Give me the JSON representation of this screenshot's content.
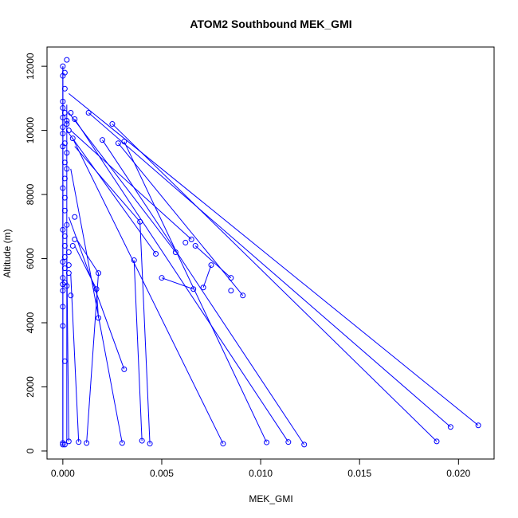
{
  "chart_data": {
    "type": "scatter",
    "title": "ATOM2 Southbound MEK_GMI",
    "xlabel": "MEK_GMI",
    "ylabel": "Altitude (m)",
    "xlim": [
      -0.0008,
      0.0218
    ],
    "ylim": [
      -250,
      12600
    ],
    "x_ticks": [
      0.0,
      0.005,
      0.01,
      0.015,
      0.02
    ],
    "x_tick_labels": [
      "0.000",
      "0.005",
      "0.010",
      "0.015",
      "0.020"
    ],
    "y_ticks": [
      0,
      2000,
      4000,
      6000,
      8000,
      10000,
      12000
    ],
    "y_tick_labels": [
      "0",
      "2000",
      "4000",
      "6000",
      "8000",
      "10000",
      "12000"
    ],
    "grid": false,
    "legend": "none",
    "color": "#0000ff",
    "series": [
      {
        "points": [
          [
            0.0002,
            12200
          ],
          [
            0.0,
            12000
          ],
          [
            0.0001,
            11800
          ],
          [
            0.0,
            11700
          ],
          [
            0.0001,
            11300
          ],
          [
            0.0,
            10900
          ],
          [
            0.0,
            10700
          ],
          [
            0.0001,
            10550
          ],
          [
            0.0004,
            10550
          ],
          [
            0.0,
            10400
          ],
          [
            0.0002,
            10300
          ],
          [
            0.0006,
            10350
          ],
          [
            0.0002,
            10200
          ],
          [
            0.0,
            10100
          ],
          [
            0.0003,
            10000
          ],
          [
            0.0,
            9900
          ],
          [
            0.0005,
            9750
          ],
          [
            0.0001,
            9600
          ],
          [
            0.0,
            9500
          ],
          [
            0.0002,
            9300
          ],
          [
            0.0001,
            9000
          ],
          [
            0.0002,
            8800
          ],
          [
            0.0001,
            8500
          ],
          [
            0.0,
            8200
          ],
          [
            0.0001,
            7900
          ],
          [
            0.0001,
            7500
          ],
          [
            0.0006,
            7300
          ],
          [
            0.0002,
            7050
          ],
          [
            0.0,
            6900
          ],
          [
            0.0001,
            6700
          ],
          [
            0.0006,
            6600
          ],
          [
            0.0001,
            6400
          ],
          [
            0.0005,
            6400
          ],
          [
            0.0003,
            6200
          ],
          [
            0.0001,
            6050
          ],
          [
            0.0,
            5900
          ],
          [
            0.0003,
            5800
          ],
          [
            0.0001,
            5700
          ],
          [
            0.0003,
            5550
          ],
          [
            0.0,
            5400
          ],
          [
            0.0001,
            5250
          ],
          [
            0.0,
            5200
          ],
          [
            0.0002,
            5150
          ],
          [
            0.0,
            5000
          ],
          [
            0.0004,
            4850
          ],
          [
            0.0,
            4500
          ],
          [
            0.0,
            3900
          ],
          [
            0.0001,
            2800
          ],
          [
            0.0,
            250
          ],
          [
            0.0,
            200
          ],
          [
            0.0001,
            200
          ],
          [
            0.0003,
            300
          ],
          [
            0.0008,
            280
          ],
          [
            0.0012,
            250
          ],
          [
            0.0013,
            10550
          ],
          [
            0.0025,
            10200
          ],
          [
            0.002,
            9700
          ],
          [
            0.0028,
            9600
          ],
          [
            0.0031,
            9650
          ],
          [
            0.0039,
            7150
          ],
          [
            0.0065,
            6600
          ],
          [
            0.0062,
            6500
          ],
          [
            0.0067,
            6400
          ],
          [
            0.0047,
            6150
          ],
          [
            0.0057,
            6200
          ],
          [
            0.0036,
            5950
          ],
          [
            0.0075,
            5800
          ],
          [
            0.0018,
            5550
          ],
          [
            0.005,
            5400
          ],
          [
            0.0085,
            5400
          ],
          [
            0.0071,
            5100
          ],
          [
            0.0066,
            5050
          ],
          [
            0.0017,
            5050
          ],
          [
            0.0085,
            5000
          ],
          [
            0.0091,
            4850
          ],
          [
            0.0018,
            4150
          ],
          [
            0.0031,
            2550
          ],
          [
            0.003,
            250
          ],
          [
            0.004,
            320
          ],
          [
            0.0044,
            230
          ],
          [
            0.0081,
            230
          ],
          [
            0.0103,
            270
          ],
          [
            0.0114,
            280
          ],
          [
            0.0122,
            200
          ],
          [
            0.0189,
            300
          ],
          [
            0.0196,
            750
          ],
          [
            0.021,
            800
          ]
        ],
        "segments": [
          [
            [
              0.0003,
              11150
            ],
            [
              0.021,
              800
            ]
          ],
          [
            [
              0.0013,
              10550
            ],
            [
              0.0196,
              750
            ]
          ],
          [
            [
              0.0025,
              10200
            ],
            [
              0.0189,
              300
            ]
          ],
          [
            [
              0.0006,
              10350
            ],
            [
              0.0114,
              280
            ]
          ],
          [
            [
              0.002,
              9700
            ],
            [
              0.0122,
              200
            ]
          ],
          [
            [
              0.0031,
              9650
            ],
            [
              0.0103,
              270
            ]
          ],
          [
            [
              0.0028,
              9600
            ],
            [
              0.0091,
              4850
            ]
          ],
          [
            [
              0.0005,
              9750
            ],
            [
              0.0081,
              230
            ]
          ],
          [
            [
              0.0004,
              10000
            ],
            [
              0.0065,
              6600
            ]
          ],
          [
            [
              0.0003,
              10550
            ],
            [
              0.0057,
              6200
            ]
          ],
          [
            [
              0.0002,
              10000
            ],
            [
              0.0047,
              6150
            ]
          ],
          [
            [
              0.0006,
              9500
            ],
            [
              0.0039,
              7150
            ]
          ],
          [
            [
              0.0039,
              7150
            ],
            [
              0.0044,
              230
            ]
          ],
          [
            [
              0.0036,
              5950
            ],
            [
              0.004,
              320
            ]
          ],
          [
            [
              0.0004,
              8800
            ],
            [
              0.003,
              250
            ]
          ],
          [
            [
              0.0003,
              7300
            ],
            [
              0.0031,
              2550
            ]
          ],
          [
            [
              0.0007,
              6600
            ],
            [
              0.0018,
              5550
            ]
          ],
          [
            [
              0.0018,
              5550
            ],
            [
              0.0012,
              250
            ]
          ],
          [
            [
              0.0006,
              6400
            ],
            [
              0.0017,
              5050
            ]
          ],
          [
            [
              0.0017,
              5050
            ],
            [
              0.0018,
              4150
            ]
          ],
          [
            [
              0.0004,
              5500
            ],
            [
              0.0008,
              280
            ]
          ],
          [
            [
              0.0002,
              6000
            ],
            [
              0.0003,
              300
            ]
          ],
          [
            [
              0.005,
              5400
            ],
            [
              0.0066,
              5050
            ]
          ],
          [
            [
              0.0067,
              6400
            ],
            [
              0.0085,
              5400
            ]
          ],
          [
            [
              0.0075,
              5800
            ],
            [
              0.0071,
              5100
            ]
          ]
        ]
      }
    ]
  }
}
